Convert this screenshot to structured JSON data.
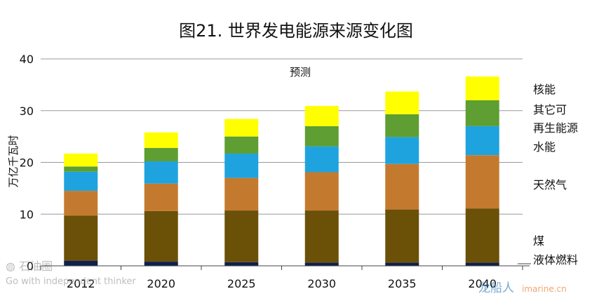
{
  "chart_data": {
    "type": "bar",
    "stacked": true,
    "title": "图21. 世界发电能源来源变化图",
    "ylabel": "万亿千瓦时",
    "annotation": "预测",
    "ylim": [
      0,
      40
    ],
    "yticks": [
      0,
      10,
      20,
      30,
      40
    ],
    "grid": true,
    "legend_position": "right",
    "categories": [
      "2012",
      "2020",
      "2025",
      "2030",
      "2035",
      "2040"
    ],
    "series": [
      {
        "name": "液体燃料",
        "color": "#0f1f4e",
        "values": [
          1.0,
          0.8,
          0.7,
          0.6,
          0.6,
          0.6
        ]
      },
      {
        "name": "煤",
        "color": "#6b5008",
        "values": [
          8.7,
          9.8,
          10.0,
          10.1,
          10.3,
          10.5
        ]
      },
      {
        "name": "天然气",
        "color": "#c47a2e",
        "values": [
          4.8,
          5.3,
          6.3,
          7.4,
          8.8,
          10.3
        ]
      },
      {
        "name": "水能",
        "color": "#1fa3de",
        "values": [
          3.7,
          4.3,
          4.7,
          5.0,
          5.2,
          5.6
        ]
      },
      {
        "name": "再生能源",
        "color": "#5e9e32",
        "values": [
          1.0,
          2.6,
          3.3,
          3.9,
          4.4,
          5.0
        ]
      },
      {
        "name": "核能",
        "color": "#ffff00",
        "values": [
          2.5,
          3.0,
          3.4,
          3.9,
          4.4,
          4.6
        ]
      }
    ],
    "legend_labels": [
      "核能",
      "其它可",
      "再生能源",
      "水能",
      "天然气",
      "煤",
      "液体燃料"
    ]
  },
  "watermarks": {
    "left_brand": "石油圈",
    "left_slogan": "Go with independent thinker",
    "right_brand": "龙船人",
    "right_url": "imarine.cn"
  }
}
